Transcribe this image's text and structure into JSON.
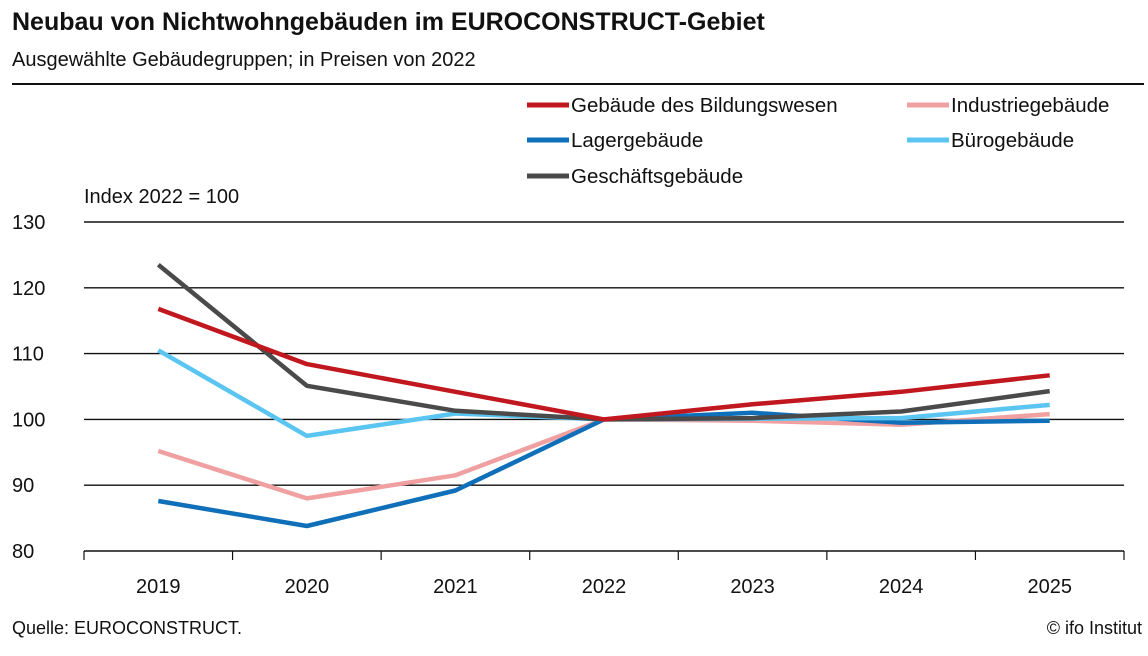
{
  "header": {
    "title": "Neubau von Nichtwohngebäuden  im EUROCONSTRUCT-Gebiet",
    "subtitle": "Ausgewählte Gebäudegruppen; in  Preisen von 2022"
  },
  "footer": {
    "source": "Quelle: EUROCONSTRUCT.",
    "copyright": "© ifo Institut"
  },
  "chart_data": {
    "type": "line",
    "title": "Neubau von Nichtwohngebäuden  im EUROCONSTRUCT-Gebiet",
    "subtitle": "Ausgewählte Gebäudegruppen; in  Preisen von 2022",
    "ylabel": "Index 2022 = 100",
    "xlabel": "",
    "categories": [
      "2019",
      "2020",
      "2021",
      "2022",
      "2023",
      "2024",
      "2025"
    ],
    "ylim": [
      80,
      130
    ],
    "yticks": [
      80,
      90,
      100,
      110,
      120,
      130
    ],
    "grid": "horizontal",
    "legend_position": "top-right",
    "series": [
      {
        "name": "Gebäude des Bildungswesen",
        "color": "#c0181e",
        "values": [
          116.8,
          108.4,
          104.2,
          100,
          102.3,
          104.2,
          106.7
        ]
      },
      {
        "name": "Industriegebäude",
        "color": "#f0a0a0",
        "values": [
          95.2,
          88.0,
          91.5,
          100,
          99.8,
          99.2,
          100.8
        ]
      },
      {
        "name": "Lagergebäude",
        "color": "#0f6fb8",
        "values": [
          87.6,
          83.8,
          89.2,
          100,
          101.0,
          99.5,
          99.8
        ]
      },
      {
        "name": "Bürogebäude",
        "color": "#5bc5f2",
        "values": [
          110.5,
          97.5,
          100.9,
          100,
          100.1,
          100.2,
          102.2
        ]
      },
      {
        "name": "Geschäftsgebäude",
        "color": "#4a4a4a",
        "values": [
          123.5,
          105.1,
          101.3,
          100,
          100.2,
          101.2,
          104.3
        ]
      }
    ]
  }
}
